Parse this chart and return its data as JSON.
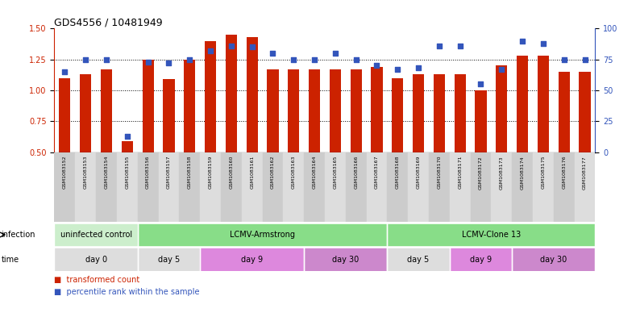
{
  "title": "GDS4556 / 10481949",
  "samples": [
    "GSM1083152",
    "GSM1083153",
    "GSM1083154",
    "GSM1083155",
    "GSM1083156",
    "GSM1083157",
    "GSM1083158",
    "GSM1083159",
    "GSM1083160",
    "GSM1083161",
    "GSM1083162",
    "GSM1083163",
    "GSM1083164",
    "GSM1083165",
    "GSM1083166",
    "GSM1083167",
    "GSM1083168",
    "GSM1083169",
    "GSM1083170",
    "GSM1083171",
    "GSM1083172",
    "GSM1083173",
    "GSM1083174",
    "GSM1083175",
    "GSM1083176",
    "GSM1083177"
  ],
  "bar_values": [
    1.1,
    1.13,
    1.17,
    0.59,
    1.25,
    1.09,
    1.25,
    1.4,
    1.45,
    1.43,
    1.17,
    1.17,
    1.17,
    1.17,
    1.17,
    1.19,
    1.1,
    1.13,
    1.13,
    1.13,
    1.0,
    1.2,
    1.28,
    1.28,
    1.15,
    1.15
  ],
  "dot_values": [
    65,
    75,
    75,
    13,
    73,
    72,
    75,
    82,
    86,
    85,
    80,
    75,
    75,
    80,
    75,
    70,
    67,
    68,
    86,
    86,
    55,
    67,
    90,
    88,
    75,
    75
  ],
  "bar_color": "#cc2200",
  "dot_color": "#3355bb",
  "ylim_left": [
    0.5,
    1.5
  ],
  "ylim_right": [
    0,
    100
  ],
  "yticks_left": [
    0.5,
    0.75,
    1.0,
    1.25,
    1.5
  ],
  "yticks_right": [
    0,
    25,
    50,
    75,
    100
  ],
  "grid_values": [
    0.75,
    1.0,
    1.25
  ],
  "infection_groups": [
    {
      "label": "uninfected control",
      "start": 0,
      "end": 3,
      "color": "#cceecc"
    },
    {
      "label": "LCMV-Armstrong",
      "start": 4,
      "end": 15,
      "color": "#88dd88"
    },
    {
      "label": "LCMV-Clone 13",
      "start": 16,
      "end": 25,
      "color": "#88dd88"
    }
  ],
  "time_groups": [
    {
      "label": "day 0",
      "start": 0,
      "end": 3,
      "color": "#dddddd"
    },
    {
      "label": "day 5",
      "start": 4,
      "end": 6,
      "color": "#dddddd"
    },
    {
      "label": "day 9",
      "start": 7,
      "end": 11,
      "color": "#dd88dd"
    },
    {
      "label": "day 30",
      "start": 12,
      "end": 15,
      "color": "#cc88cc"
    },
    {
      "label": "day 5",
      "start": 16,
      "end": 18,
      "color": "#dddddd"
    },
    {
      "label": "day 9",
      "start": 19,
      "end": 21,
      "color": "#dd88dd"
    },
    {
      "label": "day 30",
      "start": 22,
      "end": 25,
      "color": "#cc88cc"
    }
  ],
  "legend_items": [
    {
      "label": "transformed count",
      "color": "#cc2200"
    },
    {
      "label": "percentile rank within the sample",
      "color": "#3355bb"
    }
  ],
  "bg_color": "#ffffff",
  "label_band_color": "#cccccc",
  "label_band_color2": "#dddddd"
}
